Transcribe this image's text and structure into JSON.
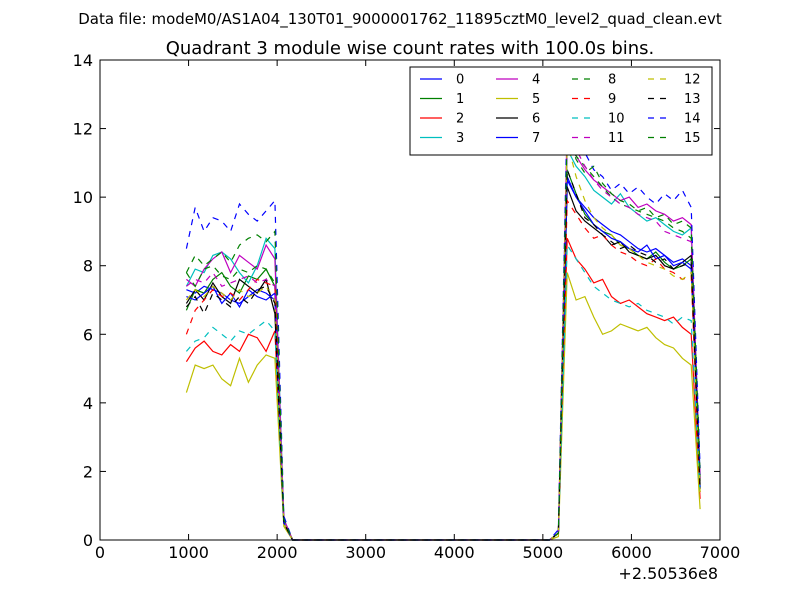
{
  "header": {
    "data_file": "Data file: modeM0/AS1A04_130T01_9000001762_11895cztM0_level2_quad_clean.evt"
  },
  "chart_data": {
    "type": "line",
    "title": "Quadrant 3 module wise count rates with 100.0s bins.",
    "xlabel": "",
    "ylabel": "",
    "xlim": [
      0,
      7000
    ],
    "ylim": [
      0,
      14
    ],
    "xticks": [
      "0",
      "1000",
      "2000",
      "3000",
      "4000",
      "5000",
      "6000",
      "7000"
    ],
    "yticks": [
      "0",
      "2",
      "4",
      "6",
      "8",
      "10",
      "12",
      "14"
    ],
    "x_offset_label": "+2.50536e8",
    "grid": false,
    "legend_position": "top-right",
    "x": [
      975,
      1075,
      1175,
      1275,
      1375,
      1475,
      1575,
      1675,
      1775,
      1875,
      1975,
      2075,
      2175,
      2275,
      2375,
      2475,
      2575,
      2675,
      2775,
      2875,
      2975,
      3075,
      3175,
      3275,
      3375,
      3475,
      3575,
      3675,
      3775,
      3875,
      3975,
      4075,
      4175,
      4275,
      4375,
      4475,
      4575,
      4675,
      4775,
      4875,
      4975,
      5075,
      5175,
      5275,
      5375,
      5475,
      5575,
      5675,
      5775,
      5875,
      5975,
      6075,
      6175,
      6275,
      6375,
      6475,
      6575,
      6675,
      6775
    ],
    "series": [
      {
        "name": "0",
        "color": "#0000ff",
        "dashed": false,
        "values": [
          7.3,
          7.2,
          7.4,
          7.3,
          7.2,
          7.0,
          6.9,
          7.1,
          7.3,
          7.2,
          7.0,
          0.6,
          0.0,
          0,
          0,
          0,
          0,
          0,
          0,
          0,
          0,
          0,
          0,
          0,
          0,
          0,
          0,
          0,
          0,
          0,
          0,
          0,
          0,
          0,
          0,
          0,
          0,
          0,
          0,
          0,
          0,
          0,
          0.2,
          10.6,
          10.0,
          9.7,
          9.4,
          9.2,
          9.0,
          8.9,
          8.7,
          8.5,
          8.4,
          8.5,
          8.3,
          8.1,
          8.2,
          8.0,
          1.5
        ]
      },
      {
        "name": "1",
        "color": "#008000",
        "dashed": false,
        "values": [
          6.7,
          7.3,
          7.2,
          7.6,
          7.8,
          7.4,
          7.2,
          7.7,
          7.6,
          7.9,
          7.4,
          0.6,
          0.0,
          0,
          0,
          0,
          0,
          0,
          0,
          0,
          0,
          0,
          0,
          0,
          0,
          0,
          0,
          0,
          0,
          0,
          0,
          0,
          0,
          0,
          0,
          0,
          0,
          0,
          0,
          0,
          0,
          0,
          0.2,
          10.8,
          10.1,
          9.5,
          9.2,
          9.0,
          8.9,
          8.6,
          8.5,
          8.3,
          8.2,
          8.4,
          8.1,
          7.9,
          8.0,
          8.2,
          1.6
        ]
      },
      {
        "name": "2",
        "color": "#ff0000",
        "dashed": false,
        "values": [
          5.2,
          5.6,
          5.8,
          5.5,
          5.4,
          5.7,
          5.5,
          6.0,
          5.9,
          5.5,
          6.1,
          0.5,
          0.0,
          0,
          0,
          0,
          0,
          0,
          0,
          0,
          0,
          0,
          0,
          0,
          0,
          0,
          0,
          0,
          0,
          0,
          0,
          0,
          0,
          0,
          0,
          0,
          0,
          0,
          0,
          0,
          0,
          0,
          0.2,
          8.8,
          8.2,
          7.9,
          7.5,
          7.6,
          7.1,
          6.9,
          7.0,
          6.8,
          6.6,
          6.5,
          6.4,
          6.5,
          6.2,
          6.0,
          1.2
        ]
      },
      {
        "name": "3",
        "color": "#00bfbf",
        "dashed": false,
        "values": [
          7.4,
          7.9,
          7.8,
          8.3,
          8.4,
          8.2,
          7.8,
          7.5,
          8.0,
          8.8,
          8.5,
          0.6,
          0.0,
          0,
          0,
          0,
          0,
          0,
          0,
          0,
          0,
          0,
          0,
          0,
          0,
          0,
          0,
          0,
          0,
          0,
          0,
          0,
          0,
          0,
          0,
          0,
          0,
          0,
          0,
          0,
          0,
          0,
          0.2,
          11.4,
          10.9,
          10.6,
          10.2,
          10.0,
          9.8,
          10.1,
          9.7,
          9.5,
          9.3,
          9.4,
          9.2,
          9.0,
          8.9,
          9.1,
          1.9
        ]
      },
      {
        "name": "4",
        "color": "#bf00bf",
        "dashed": false,
        "values": [
          7.6,
          7.4,
          7.9,
          8.2,
          8.4,
          7.8,
          8.3,
          8.1,
          7.9,
          8.6,
          8.2,
          0.6,
          0.0,
          0,
          0,
          0,
          0,
          0,
          0,
          0,
          0,
          0,
          0,
          0,
          0,
          0,
          0,
          0,
          0,
          0,
          0,
          0,
          0,
          0,
          0,
          0,
          0,
          0,
          0,
          0,
          0,
          0,
          0.2,
          11.6,
          11.2,
          10.8,
          10.5,
          10.3,
          10.1,
          9.9,
          10.0,
          9.7,
          9.8,
          9.6,
          9.5,
          9.3,
          9.4,
          9.2,
          1.8
        ]
      },
      {
        "name": "5",
        "color": "#bfbf00",
        "dashed": false,
        "values": [
          4.3,
          5.1,
          5.0,
          5.1,
          4.7,
          4.5,
          5.3,
          4.6,
          5.1,
          5.4,
          5.3,
          0.4,
          0.0,
          0,
          0,
          0,
          0,
          0,
          0,
          0,
          0,
          0,
          0,
          0,
          0,
          0,
          0,
          0,
          0,
          0,
          0,
          0,
          0,
          0,
          0,
          0,
          0,
          0,
          0,
          0,
          0,
          0,
          0.1,
          7.8,
          7.0,
          7.1,
          6.5,
          6.0,
          6.1,
          6.3,
          6.2,
          6.1,
          6.2,
          5.9,
          5.7,
          5.6,
          5.3,
          5.1,
          0.9
        ]
      },
      {
        "name": "6",
        "color": "#000000",
        "dashed": false,
        "values": [
          6.9,
          7.3,
          7.0,
          7.5,
          7.1,
          6.9,
          7.6,
          7.4,
          7.2,
          7.6,
          6.6,
          0.5,
          0.0,
          0,
          0,
          0,
          0,
          0,
          0,
          0,
          0,
          0,
          0,
          0,
          0,
          0,
          0,
          0,
          0,
          0,
          0,
          0,
          0,
          0,
          0,
          0,
          0,
          0,
          0,
          0,
          0,
          0,
          0.2,
          10.3,
          9.6,
          9.3,
          9.1,
          8.9,
          8.6,
          8.7,
          8.4,
          8.3,
          8.2,
          8.3,
          8.0,
          7.9,
          8.1,
          8.3,
          1.5
        ]
      },
      {
        "name": "7",
        "color": "#0000ff",
        "dashed": false,
        "values": [
          7.1,
          7.0,
          7.2,
          7.4,
          6.9,
          7.2,
          6.8,
          7.3,
          7.1,
          7.0,
          7.2,
          0.5,
          0.0,
          0,
          0,
          0,
          0,
          0,
          0,
          0,
          0,
          0,
          0,
          0,
          0,
          0,
          0,
          0,
          0,
          0,
          0,
          0,
          0,
          0,
          0,
          0,
          0,
          0,
          0,
          0,
          0,
          0,
          0.2,
          10.5,
          10.0,
          9.6,
          9.2,
          9.0,
          8.8,
          8.7,
          8.5,
          8.4,
          8.6,
          8.2,
          8.3,
          8.0,
          8.1,
          7.9,
          1.5
        ]
      },
      {
        "name": "8",
        "color": "#008000",
        "dashed": true,
        "values": [
          7.8,
          7.4,
          7.9,
          8.0,
          7.7,
          7.6,
          7.9,
          7.8,
          8.0,
          7.9,
          7.5,
          0.6,
          0.0,
          0,
          0,
          0,
          0,
          0,
          0,
          0,
          0,
          0,
          0,
          0,
          0,
          0,
          0,
          0,
          0,
          0,
          0,
          0,
          0,
          0,
          0,
          0,
          0,
          0,
          0,
          0,
          0,
          0,
          0.2,
          11.9,
          11.2,
          10.9,
          10.6,
          10.3,
          10.0,
          9.8,
          9.7,
          9.6,
          9.5,
          9.4,
          9.3,
          9.1,
          9.0,
          8.8,
          1.7
        ]
      },
      {
        "name": "9",
        "color": "#ff0000",
        "dashed": true,
        "values": [
          6.0,
          6.7,
          7.0,
          7.3,
          7.1,
          7.2,
          7.0,
          7.3,
          7.6,
          7.5,
          7.4,
          0.6,
          0.0,
          0,
          0,
          0,
          0,
          0,
          0,
          0,
          0,
          0,
          0,
          0,
          0,
          0,
          0,
          0,
          0,
          0,
          0,
          0,
          0,
          0,
          0,
          0,
          0,
          0,
          0,
          0,
          0,
          0,
          0.2,
          9.9,
          9.5,
          9.1,
          8.8,
          8.9,
          8.6,
          8.4,
          8.3,
          8.1,
          8.0,
          8.2,
          7.9,
          7.8,
          7.6,
          7.7,
          1.4
        ]
      },
      {
        "name": "10",
        "color": "#00bfbf",
        "dashed": true,
        "values": [
          5.5,
          5.8,
          5.9,
          6.2,
          6.0,
          5.8,
          6.1,
          6.0,
          6.2,
          6.4,
          6.1,
          0.5,
          0.0,
          0,
          0,
          0,
          0,
          0,
          0,
          0,
          0,
          0,
          0,
          0,
          0,
          0,
          0,
          0,
          0,
          0,
          0,
          0,
          0,
          0,
          0,
          0,
          0,
          0,
          0,
          0,
          0,
          0,
          0.2,
          8.6,
          8.2,
          7.8,
          7.4,
          7.2,
          7.0,
          6.9,
          6.8,
          6.9,
          6.7,
          6.6,
          6.5,
          6.3,
          6.5,
          6.4,
          1.3
        ]
      },
      {
        "name": "11",
        "color": "#bf00bf",
        "dashed": true,
        "values": [
          7.4,
          7.6,
          7.5,
          7.8,
          7.4,
          7.5,
          7.6,
          7.7,
          7.5,
          7.6,
          7.4,
          0.6,
          0.0,
          0,
          0,
          0,
          0,
          0,
          0,
          0,
          0,
          0,
          0,
          0,
          0,
          0,
          0,
          0,
          0,
          0,
          0,
          0,
          0,
          0,
          0,
          0,
          0,
          0,
          0,
          0,
          0,
          0,
          0.2,
          12.2,
          11.4,
          10.9,
          10.5,
          10.2,
          10.0,
          9.8,
          9.7,
          9.5,
          9.4,
          9.3,
          9.0,
          8.9,
          8.8,
          8.7,
          1.8
        ]
      },
      {
        "name": "12",
        "color": "#bfbf00",
        "dashed": true,
        "values": [
          7.0,
          7.3,
          7.1,
          7.4,
          7.2,
          7.0,
          7.3,
          7.1,
          7.2,
          7.4,
          7.0,
          0.5,
          0.0,
          0,
          0,
          0,
          0,
          0,
          0,
          0,
          0,
          0,
          0,
          0,
          0,
          0,
          0,
          0,
          0,
          0,
          0,
          0,
          0,
          0,
          0,
          0,
          0,
          0,
          0,
          0,
          0,
          0,
          0.2,
          11.6,
          10.6,
          9.9,
          9.4,
          9.1,
          8.9,
          8.6,
          8.5,
          8.3,
          8.1,
          8.0,
          7.9,
          7.7,
          7.6,
          7.8,
          1.4
        ]
      },
      {
        "name": "13",
        "color": "#000000",
        "dashed": true,
        "values": [
          6.8,
          7.1,
          6.6,
          7.2,
          7.0,
          6.8,
          7.1,
          6.9,
          7.3,
          7.4,
          6.9,
          0.5,
          0.0,
          0,
          0,
          0,
          0,
          0,
          0,
          0,
          0,
          0,
          0,
          0,
          0,
          0,
          0,
          0,
          0,
          0,
          0,
          0,
          0,
          0,
          0,
          0,
          0,
          0,
          0,
          0,
          0,
          0,
          0.2,
          10.8,
          10.1,
          9.4,
          9.2,
          8.9,
          8.7,
          8.5,
          8.6,
          8.4,
          8.3,
          8.1,
          8.2,
          7.9,
          8.0,
          8.1,
          1.5
        ]
      },
      {
        "name": "14",
        "color": "#0000ff",
        "dashed": true,
        "values": [
          8.5,
          9.7,
          9.0,
          9.4,
          9.3,
          9.0,
          9.8,
          9.5,
          9.3,
          9.6,
          9.9,
          0.7,
          0.0,
          0,
          0,
          0,
          0,
          0,
          0,
          0,
          0,
          0,
          0,
          0,
          0,
          0,
          0,
          0,
          0,
          0,
          0,
          0,
          0,
          0,
          0,
          0,
          0,
          0,
          0,
          0,
          0,
          0,
          0.3,
          12.6,
          12.0,
          11.3,
          10.8,
          10.6,
          10.2,
          10.4,
          10.1,
          10.3,
          10.0,
          9.8,
          10.1,
          9.9,
          10.2,
          9.7,
          2.1
        ]
      },
      {
        "name": "15",
        "color": "#008000",
        "dashed": true,
        "values": [
          7.8,
          8.3,
          8.0,
          8.2,
          8.4,
          8.1,
          8.6,
          8.8,
          8.9,
          8.7,
          9.0,
          0.6,
          0.0,
          0,
          0,
          0,
          0,
          0,
          0,
          0,
          0,
          0,
          0,
          0,
          0,
          0,
          0,
          0,
          0,
          0,
          0,
          0,
          0,
          0,
          0,
          0,
          0,
          0,
          0,
          0,
          0,
          0,
          0.2,
          11.9,
          11.1,
          10.7,
          10.9,
          10.4,
          10.1,
          9.9,
          9.8,
          9.6,
          9.7,
          9.4,
          9.5,
          9.2,
          9.3,
          9.1,
          1.9
        ]
      }
    ]
  }
}
